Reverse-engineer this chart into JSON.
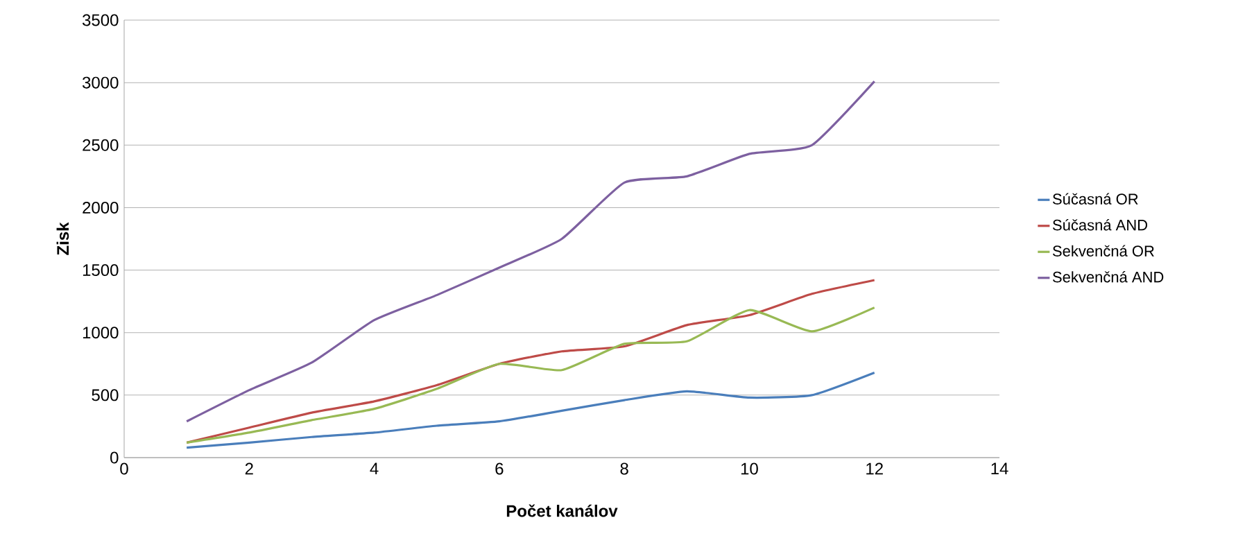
{
  "chart_data": {
    "type": "line",
    "xlabel": "Počet kanálov",
    "ylabel": "Zisk",
    "x": [
      1,
      2,
      3,
      4,
      5,
      6,
      7,
      8,
      9,
      10,
      11,
      12
    ],
    "xlim": [
      0,
      14
    ],
    "xticks": [
      0,
      2,
      4,
      6,
      8,
      10,
      12,
      14
    ],
    "ylim": [
      0,
      3500
    ],
    "yticks": [
      0,
      500,
      1000,
      1500,
      2000,
      2500,
      3000,
      3500
    ],
    "grid": "y",
    "legend": "right",
    "marker": "none",
    "line_style": "solid",
    "series": [
      {
        "name": "Súčasná OR",
        "color": "#4a7ebb",
        "values": [
          80,
          120,
          165,
          200,
          255,
          290,
          375,
          460,
          530,
          480,
          500,
          680
        ]
      },
      {
        "name": "Súčasná AND",
        "color": "#be4b48",
        "values": [
          120,
          240,
          360,
          450,
          580,
          750,
          850,
          890,
          1060,
          1140,
          1310,
          1420
        ]
      },
      {
        "name": "Sekvenčná OR",
        "color": "#98b954",
        "values": [
          120,
          200,
          300,
          390,
          550,
          750,
          700,
          910,
          930,
          1180,
          1010,
          1200
        ]
      },
      {
        "name": "Sekvenčná AND",
        "color": "#7d60a0",
        "values": [
          290,
          540,
          760,
          1100,
          1300,
          1520,
          1750,
          2200,
          2250,
          2430,
          2500,
          3010
        ]
      }
    ]
  }
}
